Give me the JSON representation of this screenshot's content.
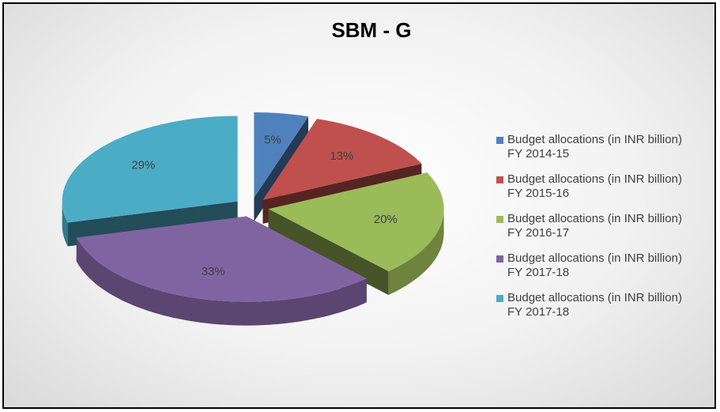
{
  "chart_data": {
    "type": "pie",
    "title": "SBM - G",
    "categories": [
      "Budget allocations (in INR billion) FY 2014-15",
      "Budget allocations (in INR billion) FY 2015-16",
      "Budget allocations (in INR billion) FY 2016-17",
      "Budget allocations (in INR billion) FY 2017-18",
      "Budget allocations (in INR billion) FY 2017-18"
    ],
    "values": [
      5,
      13,
      20,
      33,
      29
    ],
    "value_labels": [
      "5%",
      "13%",
      "20%",
      "33%",
      "29%"
    ],
    "colors": [
      "#4f81bd",
      "#c0504d",
      "#9bbb59",
      "#8064a2",
      "#4bacc6"
    ],
    "legend": "right"
  }
}
